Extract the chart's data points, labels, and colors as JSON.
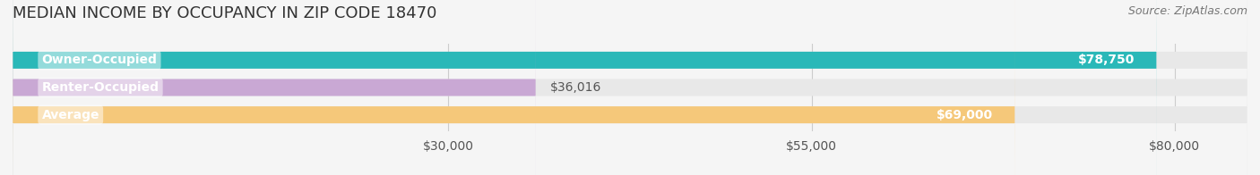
{
  "title": "MEDIAN INCOME BY OCCUPANCY IN ZIP CODE 18470",
  "source": "Source: ZipAtlas.com",
  "categories": [
    "Owner-Occupied",
    "Renter-Occupied",
    "Average"
  ],
  "values": [
    78750,
    36016,
    69000
  ],
  "bar_colors": [
    "#2ab8b8",
    "#c9a8d4",
    "#f5c87a"
  ],
  "bar_labels": [
    "$78,750",
    "$36,016",
    "$69,000"
  ],
  "label_inside": [
    true,
    false,
    true
  ],
  "xlim": [
    0,
    85000
  ],
  "xticks": [
    30000,
    55000,
    80000
  ],
  "xtick_labels": [
    "$30,000",
    "$55,000",
    "$80,000"
  ],
  "background_color": "#f5f5f5",
  "bar_bg_color": "#e8e8e8",
  "title_fontsize": 13,
  "source_fontsize": 9,
  "label_fontsize": 10,
  "tick_fontsize": 10,
  "bar_height": 0.6,
  "figsize": [
    14.06,
    1.96
  ],
  "dpi": 100
}
